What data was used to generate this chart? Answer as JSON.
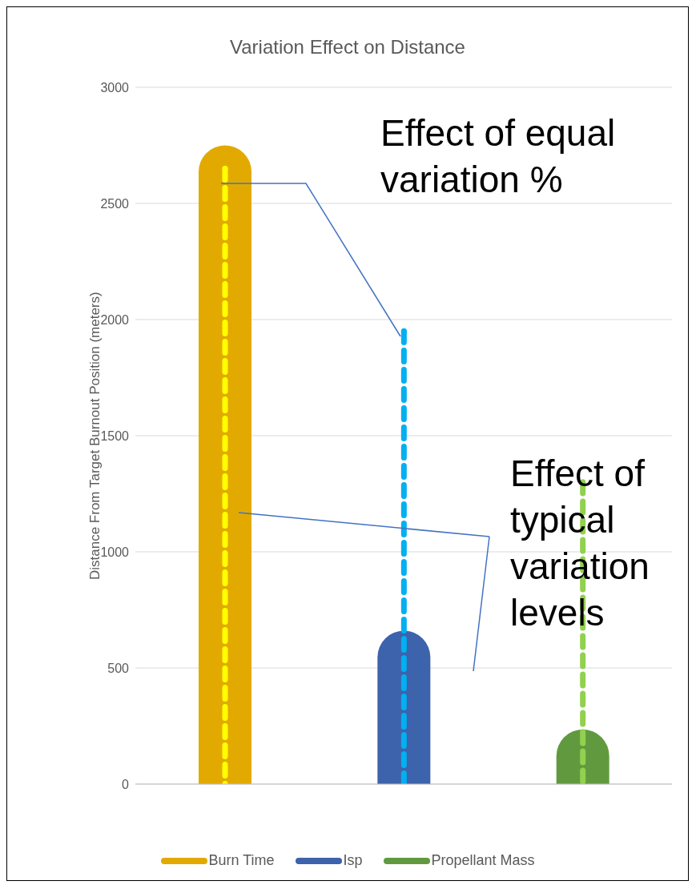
{
  "chart_data": {
    "type": "bar",
    "title": "Variation Effect on Distance",
    "ylabel": "Distance From Target Burnout Position (meters)",
    "categories": [
      null,
      null,
      null
    ],
    "series": [
      {
        "name": "Burn Time",
        "color": "#e2aa00",
        "values": [
          2750,
          null,
          null
        ]
      },
      {
        "name": "Isp",
        "color": "#3c63ab",
        "values": [
          null,
          660,
          null
        ]
      },
      {
        "name": "Propellant Mass",
        "color": "#619a3e",
        "values": [
          null,
          null,
          235
        ]
      },
      {
        "type": "lollipop",
        "marker": "circle",
        "colors": [
          "#ffff00",
          "#00b0f0",
          "#92d050"
        ],
        "values": [
          2650,
          1950,
          1300
        ],
        "line_style": "dashed"
      }
    ],
    "ylim": [
      0,
      3000
    ],
    "yticks": [
      0,
      500,
      1000,
      1500,
      2000,
      2500,
      3000
    ],
    "grid": "y",
    "legend": "bottom",
    "tick_labels": "y",
    "annotations": [
      "Effect of equal variation %",
      "Effect of typical variation levels"
    ]
  }
}
